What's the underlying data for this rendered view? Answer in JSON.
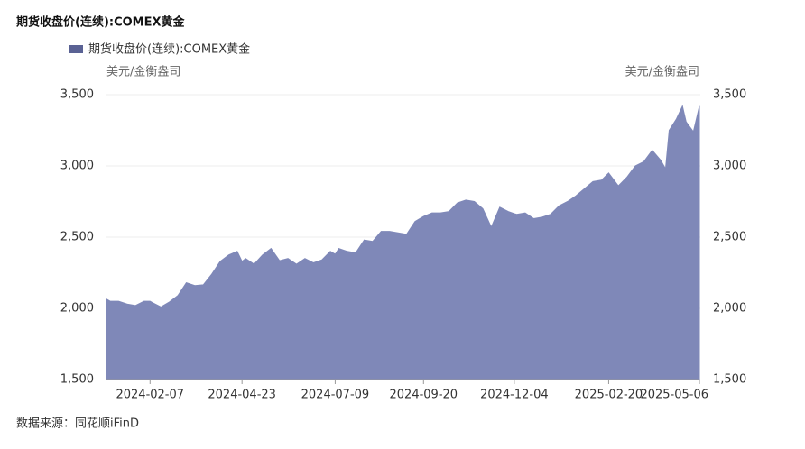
{
  "chart_data": {
    "type": "area",
    "title": "期货收盘价(连续):COMEX黄金",
    "y_label": "美元/金衡盎司",
    "y2_label": "美元/金衡盎司",
    "source": "数据来源：同花顺iFinD",
    "x": [
      "2024-01-02",
      "2024-01-05",
      "2024-01-12",
      "2024-01-19",
      "2024-01-26",
      "2024-02-02",
      "2024-02-07",
      "2024-02-09",
      "2024-02-16",
      "2024-02-23",
      "2024-03-01",
      "2024-03-08",
      "2024-03-15",
      "2024-03-22",
      "2024-03-29",
      "2024-04-05",
      "2024-04-12",
      "2024-04-19",
      "2024-04-23",
      "2024-04-26",
      "2024-05-03",
      "2024-05-10",
      "2024-05-17",
      "2024-05-24",
      "2024-05-31",
      "2024-06-07",
      "2024-06-14",
      "2024-06-21",
      "2024-06-28",
      "2024-07-05",
      "2024-07-09",
      "2024-07-12",
      "2024-07-19",
      "2024-07-26",
      "2024-08-02",
      "2024-08-09",
      "2024-08-16",
      "2024-08-23",
      "2024-08-30",
      "2024-09-06",
      "2024-09-13",
      "2024-09-20",
      "2024-09-27",
      "2024-10-04",
      "2024-10-11",
      "2024-10-18",
      "2024-10-25",
      "2024-11-01",
      "2024-11-08",
      "2024-11-15",
      "2024-11-22",
      "2024-11-29",
      "2024-12-04",
      "2024-12-06",
      "2024-12-13",
      "2024-12-20",
      "2024-12-27",
      "2025-01-03",
      "2025-01-10",
      "2025-01-17",
      "2025-01-24",
      "2025-01-31",
      "2025-02-07",
      "2025-02-14",
      "2025-02-20",
      "2025-02-28",
      "2025-03-07",
      "2025-03-14",
      "2025-03-21",
      "2025-03-28",
      "2025-04-04",
      "2025-04-08",
      "2025-04-11",
      "2025-04-17",
      "2025-04-22",
      "2025-04-25",
      "2025-05-01",
      "2025-05-06"
    ],
    "series": [
      {
        "name": "期货收盘价(连续):COMEX黄金",
        "color": "#7f88b8",
        "values": [
          2065,
          2050,
          2050,
          2030,
          2020,
          2050,
          2050,
          2040,
          2010,
          2045,
          2090,
          2180,
          2160,
          2165,
          2240,
          2330,
          2375,
          2400,
          2330,
          2350,
          2310,
          2375,
          2420,
          2335,
          2350,
          2310,
          2350,
          2320,
          2340,
          2400,
          2380,
          2420,
          2400,
          2390,
          2480,
          2470,
          2540,
          2540,
          2530,
          2520,
          2610,
          2645,
          2670,
          2670,
          2680,
          2740,
          2760,
          2750,
          2700,
          2570,
          2710,
          2680,
          2665,
          2660,
          2670,
          2630,
          2640,
          2660,
          2720,
          2750,
          2790,
          2840,
          2890,
          2900,
          2950,
          2860,
          2920,
          3000,
          3030,
          3110,
          3040,
          2980,
          3250,
          3330,
          3420,
          3310,
          3240,
          3420
        ]
      }
    ],
    "xticks": [
      "2024-02-07",
      "2024-04-23",
      "2024-07-09",
      "2024-09-20",
      "2024-12-04",
      "2025-02-20",
      "2025-05-06"
    ],
    "ylim": [
      1500,
      3500
    ],
    "yticks": [
      {
        "value": 1500,
        "label": "1,500"
      },
      {
        "value": 2000,
        "label": "2,000"
      },
      {
        "value": 2500,
        "label": "2,500"
      },
      {
        "value": 3000,
        "label": "3,000"
      },
      {
        "value": 3500,
        "label": "3,500"
      }
    ],
    "y2lim": [
      1500,
      3500
    ],
    "y2ticks": [
      {
        "value": 1500,
        "label": "1,500"
      },
      {
        "value": 2000,
        "label": "2,000"
      },
      {
        "value": 2500,
        "label": "2,500"
      },
      {
        "value": 3000,
        "label": "3,000"
      },
      {
        "value": 3500,
        "label": "3,500"
      }
    ],
    "grid": true
  }
}
